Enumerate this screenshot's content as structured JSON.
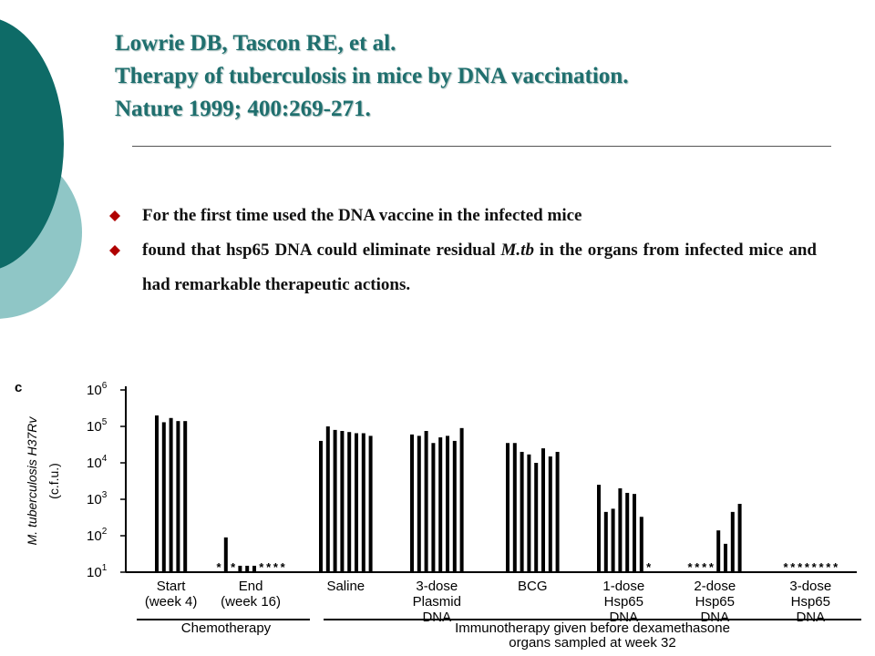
{
  "title": {
    "line1": "Lowrie DB, Tascon RE, et al.",
    "line2": "Therapy of tuberculosis in mice by DNA vaccination.",
    "line3": "Nature 1999; 400:269-271."
  },
  "bullets": [
    {
      "text": "For the first time used the DNA vaccine in the infected mice"
    },
    {
      "text": "found that hsp65 DNA could eliminate residual M.tb in the organs from infected mice and had remarkable therapeutic actions.",
      "pre": "found that hsp65 DNA could eliminate residual ",
      "italic": "M.tb",
      "post": " in the organs from infected mice and had remarkable therapeutic actions."
    }
  ],
  "colors": {
    "title": "#1f6f6e",
    "deco_dark": "#0e6b67",
    "deco_light": "#8fc6c6",
    "bullet": "#b00000"
  },
  "chart_data": {
    "type": "bar",
    "panel_label": "c",
    "ylabel": "M. tuberculosis H37Rv (c.f.u.)",
    "yscale": "log",
    "ylim": [
      10,
      1000000
    ],
    "yticks": [
      {
        "exp": 1,
        "label_base": "10",
        "label_exp": "1"
      },
      {
        "exp": 2,
        "label_base": "10",
        "label_exp": "2"
      },
      {
        "exp": 3,
        "label_base": "10",
        "label_exp": "3"
      },
      {
        "exp": 4,
        "label_base": "10",
        "label_exp": "4"
      },
      {
        "exp": 5,
        "label_base": "10",
        "label_exp": "5"
      },
      {
        "exp": 6,
        "label_base": "10",
        "label_exp": "6"
      }
    ],
    "groups": [
      {
        "label": [
          "Start",
          "(week 4)"
        ],
        "values": [
          200000,
          130000,
          170000,
          140000,
          140000
        ],
        "below_detection": []
      },
      {
        "label": [
          "End",
          "(week 16)"
        ],
        "values": [
          10,
          90,
          10,
          15,
          15,
          15,
          10,
          10,
          10,
          10
        ],
        "below_detection": [
          0,
          2,
          6,
          7,
          8,
          9
        ]
      },
      {
        "label": [
          "Saline"
        ],
        "values": [
          40000,
          100000,
          80000,
          75000,
          70000,
          65000,
          65000,
          55000
        ],
        "below_detection": []
      },
      {
        "label": [
          "3-dose",
          "Plasmid",
          "DNA"
        ],
        "values": [
          60000,
          55000,
          75000,
          35000,
          50000,
          55000,
          40000,
          90000
        ],
        "below_detection": []
      },
      {
        "label": [
          "BCG"
        ],
        "values": [
          35000,
          35000,
          20000,
          17000,
          10000,
          25000,
          15000,
          20000
        ],
        "below_detection": []
      },
      {
        "label": [
          "1-dose",
          "Hsp65",
          "DNA"
        ],
        "values": [
          2500,
          450,
          550,
          2000,
          1500,
          1400,
          330,
          10
        ],
        "below_detection": [
          7
        ]
      },
      {
        "label": [
          "2-dose",
          "Hsp65",
          "DNA"
        ],
        "values": [
          10,
          10,
          10,
          10,
          140,
          60,
          450,
          750
        ],
        "below_detection": [
          0,
          1,
          2,
          3
        ]
      },
      {
        "label": [
          "3-dose",
          "Hsp65",
          "DNA"
        ],
        "values": [
          10,
          10,
          10,
          10,
          10,
          10,
          10,
          10
        ],
        "below_detection": [
          0,
          1,
          2,
          3,
          4,
          5,
          6,
          7
        ]
      }
    ],
    "brackets": [
      {
        "label": "Chemotherapy",
        "from_group": 0,
        "to_group": 1
      },
      {
        "label": "Immunotherapy given before dexamethasone",
        "label2": "organs sampled at week 32",
        "from_group": 2,
        "to_group": 7
      }
    ]
  }
}
